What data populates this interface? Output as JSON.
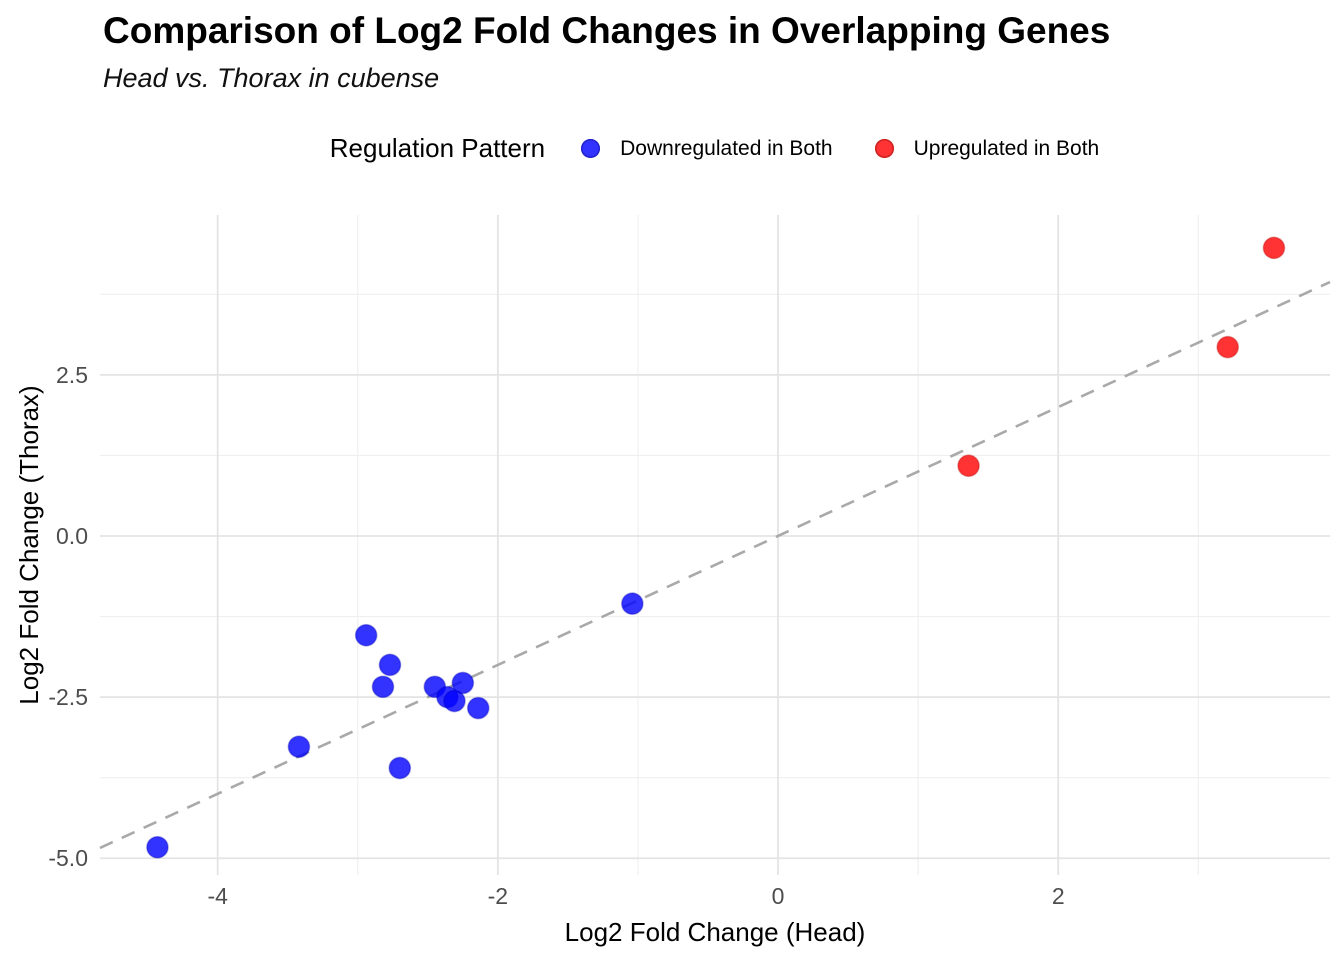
{
  "title": "Comparison of Log2 Fold Changes in Overlapping Genes",
  "subtitle": "Head vs. Thorax in cubense",
  "legend": {
    "title": "Regulation Pattern",
    "items": [
      {
        "label": "Downregulated in Both",
        "color": "#3333FF",
        "ring": "#2222CC"
      },
      {
        "label": "Upregulated in Both",
        "color": "#FF3333",
        "ring": "#CC2222"
      }
    ]
  },
  "chart_data": {
    "type": "scatter",
    "title": "Comparison of Log2 Fold Changes in Overlapping Genes",
    "subtitle": "Head vs. Thorax in cubense",
    "xlabel": "Log2 Fold Change (Head)",
    "ylabel": "Log2 Fold Change (Thorax)",
    "xlim": [
      -4.84,
      3.94
    ],
    "ylim": [
      -5.26,
      4.98
    ],
    "x_major_ticks": [
      {
        "v": -4,
        "label": "-4"
      },
      {
        "v": -2,
        "label": "-2"
      },
      {
        "v": 0,
        "label": "0"
      },
      {
        "v": 2,
        "label": "2"
      }
    ],
    "y_major_ticks": [
      {
        "v": 2.5,
        "label": "2.5"
      },
      {
        "v": 0,
        "label": "0.0"
      },
      {
        "v": -2.5,
        "label": "-2.5"
      },
      {
        "v": -5,
        "label": "-5.0"
      }
    ],
    "x_minor_ticks": [
      -3,
      -1,
      1,
      3
    ],
    "y_minor_ticks": [
      3.75,
      1.25,
      -1.25,
      -3.75
    ],
    "grid": true,
    "legend_position": "top",
    "reference_line": {
      "slope": 1,
      "intercept": 0,
      "style": "dashed",
      "color": "#A9A9A9"
    },
    "series": [
      {
        "name": "Downregulated in Both",
        "color": "#0000FF",
        "ring": "#0000B4",
        "alpha": 0.8,
        "points": [
          [
            -4.43,
            -4.83
          ],
          [
            -3.42,
            -3.27
          ],
          [
            -2.94,
            -1.54
          ],
          [
            -2.82,
            -2.34
          ],
          [
            -2.77,
            -2.0
          ],
          [
            -2.7,
            -3.6
          ],
          [
            -2.45,
            -2.34
          ],
          [
            -2.36,
            -2.5
          ],
          [
            -2.31,
            -2.56
          ],
          [
            -2.25,
            -2.28
          ],
          [
            -2.14,
            -2.67
          ],
          [
            -1.04,
            -1.05
          ]
        ]
      },
      {
        "name": "Upregulated in Both",
        "color": "#FF0000",
        "ring": "#B40000",
        "alpha": 0.8,
        "points": [
          [
            1.36,
            1.09
          ],
          [
            3.21,
            2.93
          ],
          [
            3.54,
            4.47
          ]
        ]
      }
    ]
  },
  "layout_hints": {
    "grid_major_color": "#E4E4E4",
    "grid_minor_color": "#EFEFEF",
    "background": "#FFFFFF"
  }
}
